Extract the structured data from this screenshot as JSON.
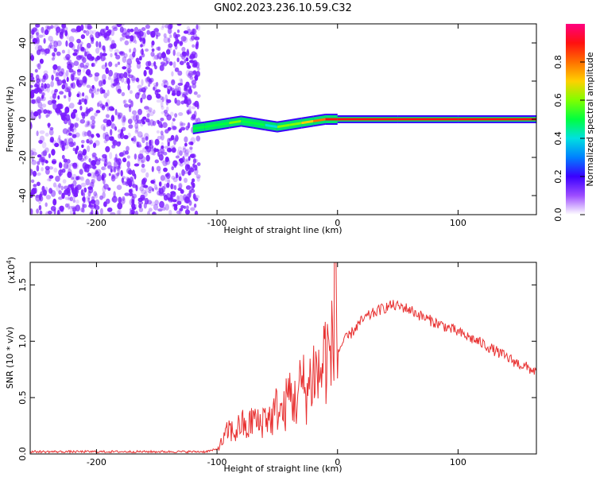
{
  "chart_data": [
    {
      "type": "heatmap",
      "title": "GN02.2023.236.10.59.C32",
      "xlabel": "Height of straight line (km)",
      "ylabel": "Frequency (Hz)",
      "xlim": [
        -255,
        165
      ],
      "ylim": [
        -50,
        50
      ],
      "xticks": [
        -200,
        -100,
        0,
        100
      ],
      "xtick_labels": [
        "-200",
        "-100",
        "0",
        "100"
      ],
      "yticks": [
        -40,
        -20,
        0,
        20,
        40
      ],
      "ytick_labels": [
        "-40",
        "-20",
        "0",
        "20",
        "40"
      ],
      "colorbar": {
        "label": "Normalized spectral amplitude",
        "range": [
          0,
          1
        ],
        "ticks": [
          0.0,
          0.2,
          0.4,
          0.6,
          0.8
        ],
        "tick_labels": [
          "0.0",
          "0.2",
          "0.4",
          "0.6",
          "0.8"
        ]
      },
      "noise_region": {
        "x_range": [
          -255,
          -115
        ]
      },
      "signal_trace": {
        "x": [
          -120,
          -110,
          -100,
          -90,
          -80,
          -70,
          -60,
          -50,
          -40,
          -30,
          -20,
          -10,
          0,
          50,
          100,
          165
        ],
        "freq": [
          -5,
          -4,
          -3,
          -2,
          -1,
          -2,
          -3,
          -4,
          -3,
          -2,
          -1,
          0,
          0,
          0,
          0,
          0
        ],
        "amplitude": [
          0.45,
          0.5,
          0.5,
          0.55,
          0.5,
          0.5,
          0.35,
          0.55,
          0.6,
          0.7,
          0.8,
          0.85,
          0.9,
          0.9,
          0.9,
          0.9
        ]
      }
    },
    {
      "type": "line",
      "xlabel": "Height of straight line (km)",
      "ylabel": "SNR (10 * v/v)",
      "yscale_label": "(x10",
      "yscale_exp": "4",
      "yscale_close": ")",
      "xlim": [
        -255,
        165
      ],
      "ylim": [
        0,
        1.7
      ],
      "xticks": [
        -200,
        -100,
        0,
        100
      ],
      "xtick_labels": [
        "-200",
        "-100",
        "0",
        "100"
      ],
      "yticks": [
        0.0,
        0.5,
        1.0,
        1.5
      ],
      "ytick_labels": [
        "0.0",
        "0.5",
        "1.0",
        "1.5"
      ],
      "series": [
        {
          "name": "SNR",
          "color": "#e83232",
          "x": [
            -255,
            -200,
            -150,
            -110,
            -100,
            -95,
            -90,
            -85,
            -80,
            -75,
            -70,
            -65,
            -60,
            -55,
            -50,
            -45,
            -40,
            -35,
            -30,
            -25,
            -20,
            -15,
            -10,
            -5,
            -2,
            0,
            5,
            10,
            15,
            20,
            25,
            30,
            35,
            40,
            45,
            50,
            55,
            60,
            70,
            80,
            90,
            100,
            110,
            120,
            130,
            140,
            150,
            165
          ],
          "y": [
            0.02,
            0.02,
            0.02,
            0.02,
            0.04,
            0.12,
            0.22,
            0.18,
            0.28,
            0.2,
            0.33,
            0.25,
            0.35,
            0.3,
            0.42,
            0.35,
            0.55,
            0.45,
            0.62,
            0.55,
            0.75,
            0.68,
            0.9,
            0.85,
            1.68,
            0.9,
            1.0,
            1.05,
            1.12,
            1.18,
            1.22,
            1.25,
            1.28,
            1.3,
            1.32,
            1.31,
            1.3,
            1.28,
            1.22,
            1.17,
            1.13,
            1.08,
            1.03,
            0.98,
            0.92,
            0.86,
            0.8,
            0.73
          ]
        }
      ]
    }
  ]
}
